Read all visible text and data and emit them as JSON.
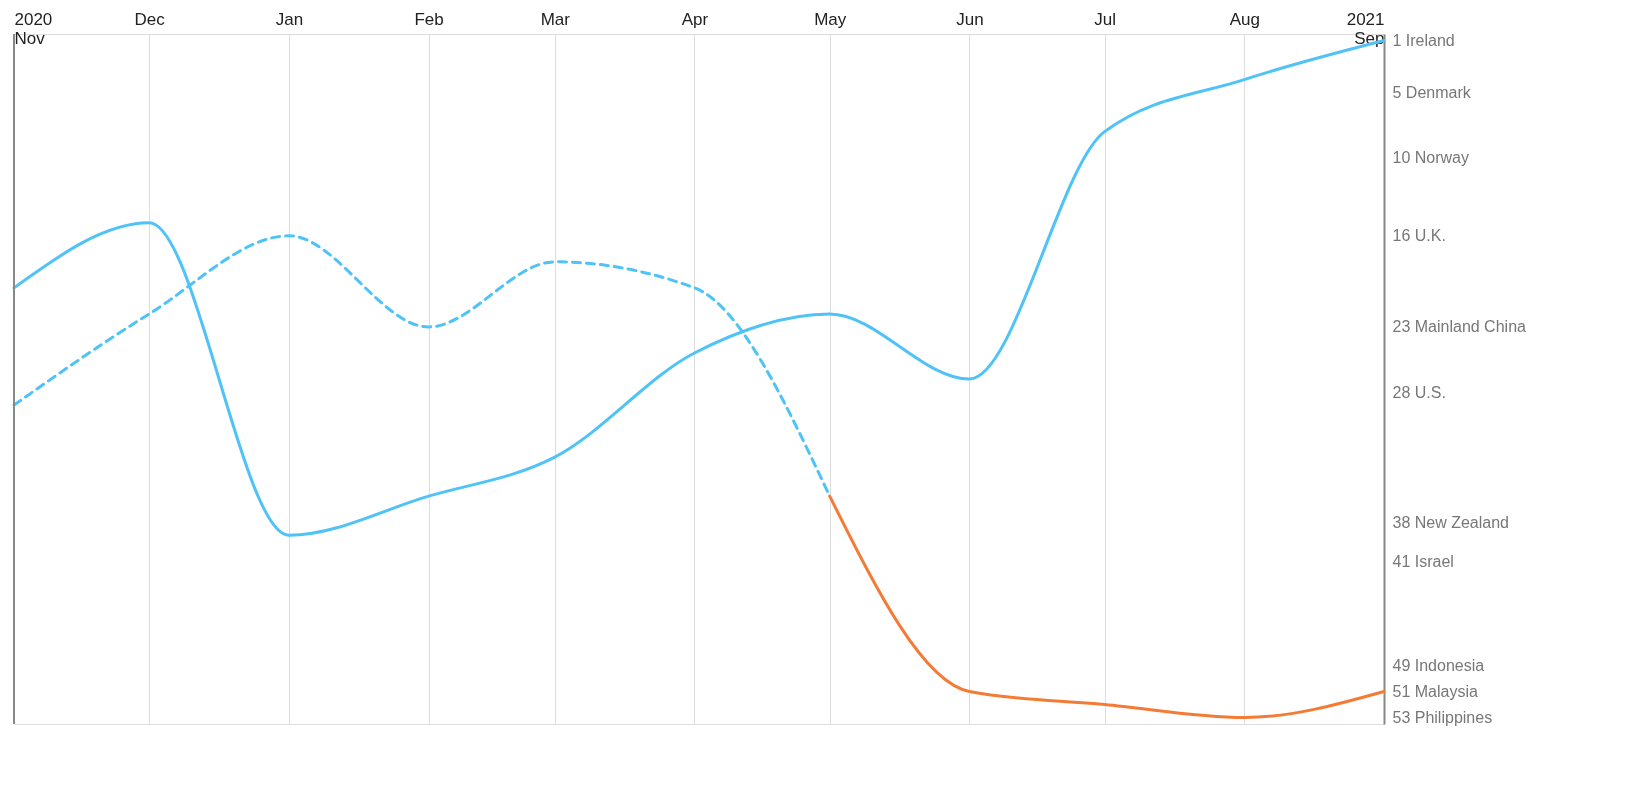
{
  "chart_data": {
    "type": "line",
    "x": [
      "2020-11",
      "2020-12",
      "2021-01",
      "2021-02",
      "2021-03",
      "2021-04",
      "2021-05",
      "2021-06",
      "2021-07",
      "2021-08",
      "2021-09"
    ],
    "xlim": [
      "2020-11",
      "2021-09"
    ],
    "xticks": [
      {
        "value": "2020-11",
        "label": "2020\nNov"
      },
      {
        "value": "2020-12",
        "label": "Dec"
      },
      {
        "value": "2021-01",
        "label": "Jan"
      },
      {
        "value": "2021-02",
        "label": "Feb"
      },
      {
        "value": "2021-03",
        "label": "Mar"
      },
      {
        "value": "2021-04",
        "label": "Apr"
      },
      {
        "value": "2021-05",
        "label": "May"
      },
      {
        "value": "2021-06",
        "label": "Jun"
      },
      {
        "value": "2021-07",
        "label": "Jul"
      },
      {
        "value": "2021-08",
        "label": "Aug"
      },
      {
        "value": "2021-09",
        "label": "2021\nSep"
      }
    ],
    "ylim": [
      53.5,
      0.5
    ],
    "yticks": [
      {
        "value": 1,
        "label": "1 Ireland"
      },
      {
        "value": 5,
        "label": "5 Denmark"
      },
      {
        "value": 10,
        "label": "10 Norway"
      },
      {
        "value": 16,
        "label": "16 U.K."
      },
      {
        "value": 23,
        "label": "23 Mainland China"
      },
      {
        "value": 28,
        "label": "28 U.S."
      },
      {
        "value": 38,
        "label": "38 New Zealand"
      },
      {
        "value": 41,
        "label": "41 Israel"
      },
      {
        "value": 49,
        "label": "49 Indonesia"
      },
      {
        "value": 51,
        "label": "51 Malaysia"
      },
      {
        "value": 53,
        "label": "53 Philippines"
      }
    ],
    "grid": "x",
    "series": [
      {
        "color": "#4fc3f7",
        "line_style": "solid",
        "values": [
          20,
          15,
          39,
          36,
          33,
          25,
          22,
          27,
          8,
          4,
          1
        ]
      },
      {
        "color": "#4fc3f7",
        "line_style": "dashed",
        "values": [
          29,
          22,
          16,
          23,
          18,
          20,
          36,
          null,
          null,
          null,
          null
        ]
      },
      {
        "color": "#f47b35",
        "line_style": "solid",
        "x": [
          "2021-05",
          "2021-06",
          "2021-07",
          "2021-08",
          "2021-09"
        ],
        "values": [
          36,
          51,
          52,
          53,
          51
        ]
      }
    ]
  }
}
